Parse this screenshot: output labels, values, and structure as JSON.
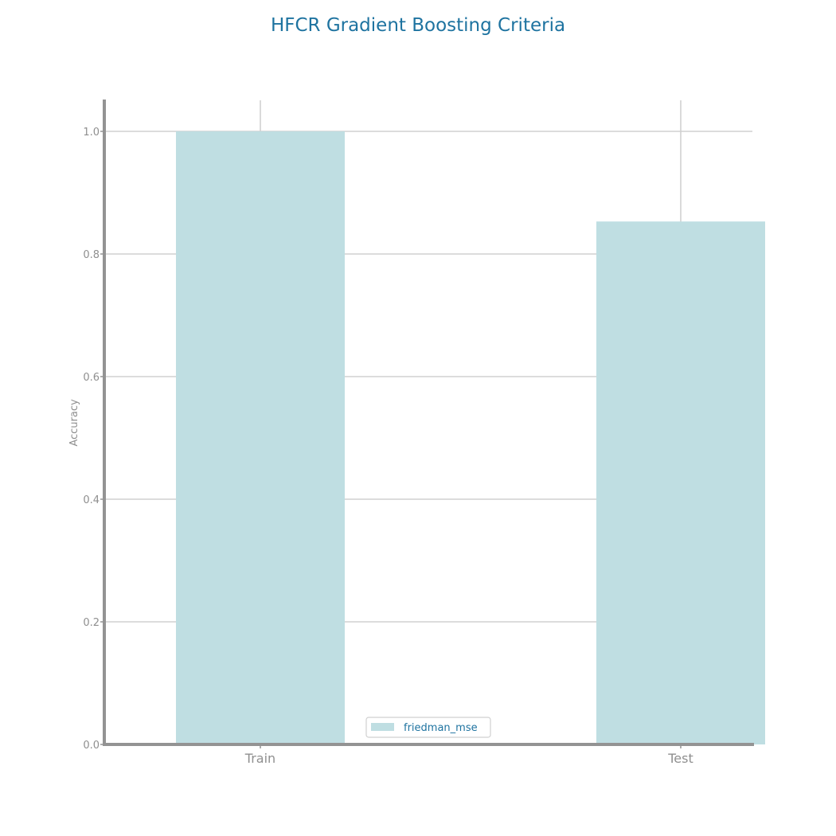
{
  "chart_data": {
    "type": "bar",
    "title": "HFCR Gradient Boosting Criteria",
    "xlabel": "",
    "ylabel": "Accuracy",
    "categories": [
      "Train",
      "Test"
    ],
    "series": [
      {
        "name": "friedman_mse",
        "values": [
          1.0,
          0.853
        ],
        "color": "#bfdee2"
      }
    ],
    "ylim": [
      0,
      1.05
    ],
    "yticks": [
      "0.0",
      "0.2",
      "0.4",
      "0.6",
      "0.8",
      "1.0"
    ],
    "grid": true,
    "legend_position": "bottom-center",
    "colors": {
      "title": "#1e73a0",
      "axis": "#939393",
      "grid": "#d0d0d0",
      "tick_text": "#8f8f8f",
      "legend_text": "#1e73a0"
    }
  }
}
